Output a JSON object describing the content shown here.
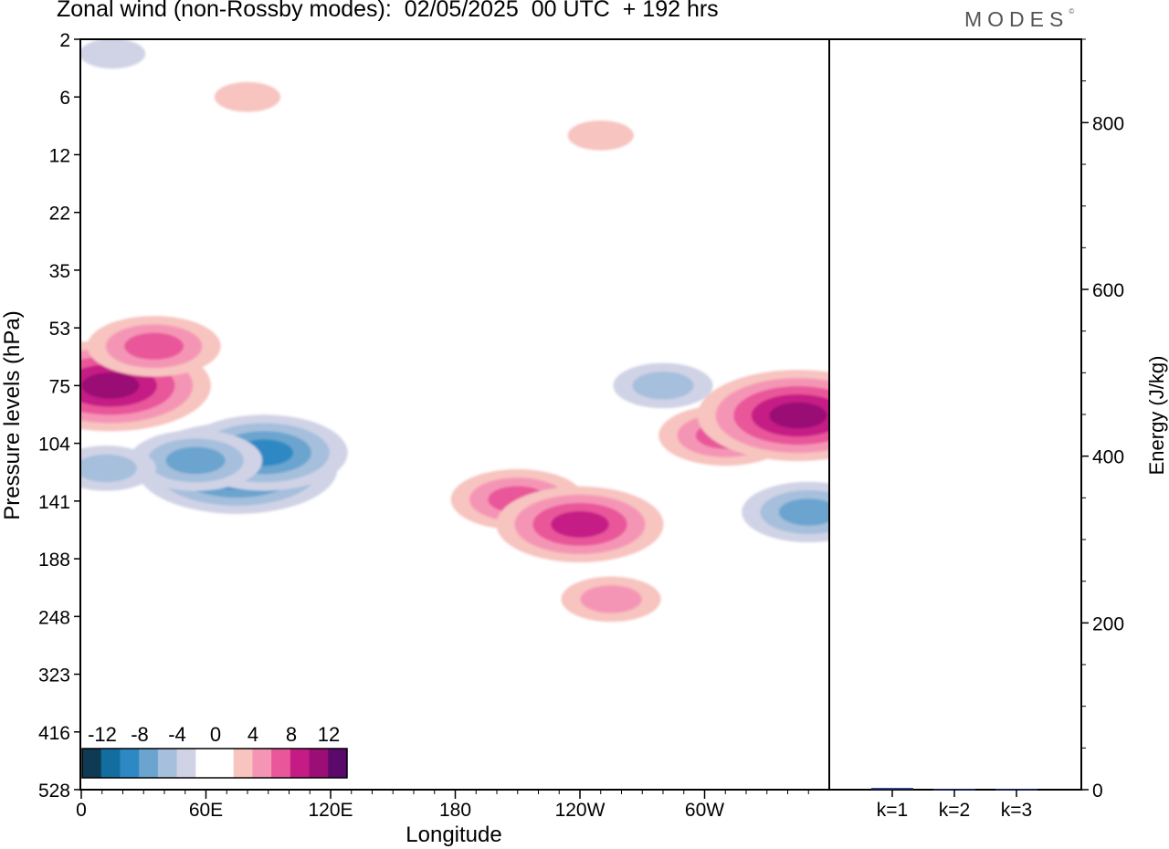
{
  "title": "Zonal wind (non-Rossby modes):  02/05/2025  00 UTC  + 192 hrs",
  "logo": "MODES",
  "colors": {
    "neg": [
      "#0e3a53",
      "#136e9f",
      "#2d88c4",
      "#6aa4cf",
      "#a6bfdc",
      "#d0d3e6"
    ],
    "pos": [
      "#f7c4c0",
      "#f595b5",
      "#e9579a",
      "#c51b85",
      "#9a0e75",
      "#5b0a6b"
    ],
    "zero": "#ffffff"
  },
  "chart_data": [
    {
      "type": "heatmap",
      "title": "Zonal wind (non-Rossby modes):  02/05/2025  00 UTC  + 192 hrs",
      "xlabel": "Longitude",
      "ylabel": "Pressure levels (hPa)",
      "xlim": [
        0,
        360
      ],
      "x_ticks": [
        "0",
        "60E",
        "120E",
        "180",
        "120W",
        "60W"
      ],
      "y_ticks": [
        "2",
        "6",
        "12",
        "22",
        "35",
        "53",
        "75",
        "104",
        "141",
        "188",
        "248",
        "323",
        "416",
        "528"
      ],
      "y_inverted": true,
      "colorbar": {
        "placement": "bottom-left",
        "tick_labels": [
          "-12",
          "-8",
          "-4",
          "0",
          "4",
          "8",
          "12"
        ],
        "levels": [
          -14,
          -12,
          -10,
          -8,
          -6,
          -4,
          -2,
          2,
          4,
          6,
          8,
          10,
          12,
          14
        ]
      },
      "features": [
        {
          "lon": 14,
          "level": 75,
          "value": 10
        },
        {
          "lon": 35,
          "level": 60,
          "value": 6
        },
        {
          "lon": 75,
          "level": 120,
          "value": -10
        },
        {
          "lon": 88,
          "level": 110,
          "value": -8
        },
        {
          "lon": 55,
          "level": 115,
          "value": -6
        },
        {
          "lon": 12,
          "level": 120,
          "value": -4
        },
        {
          "lon": 210,
          "level": 140,
          "value": 6
        },
        {
          "lon": 240,
          "level": 160,
          "value": 8
        },
        {
          "lon": 255,
          "level": 230,
          "value": 4
        },
        {
          "lon": 310,
          "level": 100,
          "value": 6
        },
        {
          "lon": 345,
          "level": 90,
          "value": 10
        },
        {
          "lon": 350,
          "level": 150,
          "value": -6
        },
        {
          "lon": 280,
          "level": 75,
          "value": -4
        },
        {
          "lon": 15,
          "level": 3,
          "value": -2
        },
        {
          "lon": 80,
          "level": 6,
          "value": 2
        },
        {
          "lon": 250,
          "level": 10,
          "value": 2
        }
      ]
    },
    {
      "type": "bar",
      "categories": [
        "k=1",
        "k=2",
        "k=3"
      ],
      "values": [
        2,
        1,
        1
      ],
      "ylabel": "Energy (J/kg)",
      "ylim": [
        0,
        900
      ],
      "y_ticks": [
        "0",
        "200",
        "400",
        "600",
        "800"
      ]
    }
  ]
}
